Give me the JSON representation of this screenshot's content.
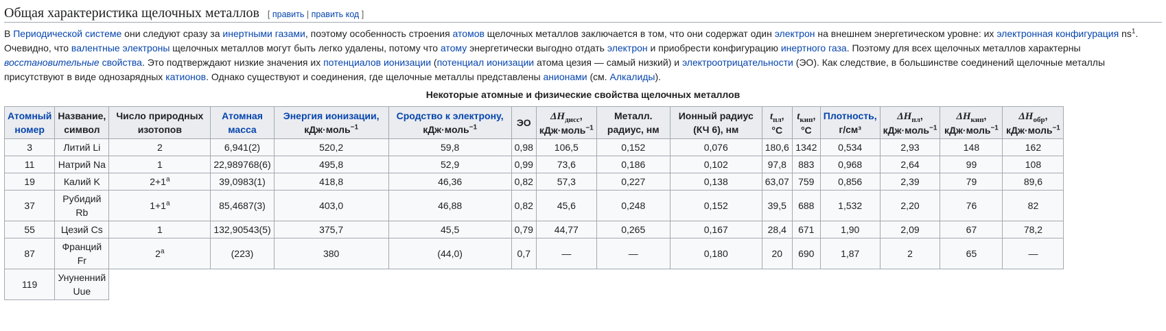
{
  "heading": {
    "title": "Общая характеристика щелочных металлов",
    "edit_open": "[",
    "edit": "править",
    "edit_sep": "|",
    "edit_code": "править код",
    "edit_close": "]"
  },
  "para": {
    "t1": "В ",
    "l1": "Периодической системе",
    "t2": " они следуют сразу за ",
    "l2": "инертными газами",
    "t3": ", поэтому особенность строения ",
    "l3": "атомов",
    "t4": " щелочных металлов заключается в том, что они содержат один ",
    "l4": "электрон",
    "t5": " на внешнем энергетическом уровне: их ",
    "l5": "электронная конфигурация",
    "t6": " ns",
    "sup1": "1",
    "t7": ". Очевидно, что ",
    "l6": "валентные электроны",
    "t8": " щелочных металлов могут быть легко удалены, потому что ",
    "l7": "атому",
    "t9": " энергетически выгодно отдать ",
    "l8": "электрон",
    "t10": " и приобрести конфигурацию ",
    "l9": "инертного газа",
    "t11": ". Поэтому для всех щелочных металлов характерны ",
    "l10a": "восстановительные",
    "t12": " ",
    "l10b": "свойства",
    "t13": ". Это подтверждают низкие значения их ",
    "l11": "потенциалов ионизации",
    "t14": " (",
    "l12": "потенциал ионизации",
    "t15": " атома цезия — самый низкий) и ",
    "l13": "электроотрицательности",
    "t16": " (ЭО). Как следствие, в большинстве соединений щелочные металлы присутствуют в виде однозарядных ",
    "l14": "катионов",
    "t17": ". Однако существуют и соединения, где щелочные металлы представлены ",
    "l15": "анионами",
    "t18": " (см. ",
    "l16": "Алкалиды",
    "t19": ")."
  },
  "table": {
    "caption": "Некоторые атомные и физические свойства щелочных металлов",
    "headers": {
      "atomic_number_1": "Атомный",
      "atomic_number_2": "номер",
      "name_1": "Название,",
      "name_2": "символ",
      "isotopes_1": "Число природных",
      "isotopes_2": "изотопов",
      "mass_1": "Атомная",
      "mass_2": "масса",
      "ion_energy_1": "Энергия ионизации,",
      "ion_energy_2": "кДж·моль",
      "affinity_1": "Сродство к электрону,",
      "affinity_2": "кДж·моль",
      "eo": "ЭО",
      "dh": "ΔH",
      "diss": "дисс",
      "dh_unit": "кДж·моль",
      "metal_r_1": "Металл.",
      "metal_r_2": "радиус, нм",
      "ion_r_1": "Ионный радиус",
      "ion_r_2": "(КЧ 6), нм",
      "t": "t",
      "pl": "пл",
      "kip": "кип",
      "deg": "°C",
      "density_1": "Плотность,",
      "density_2": "г/см³",
      "obr": "обр",
      "comma": ",",
      "unit_exp": "−1"
    },
    "rows": [
      {
        "num": "3",
        "name": "Литий Li",
        "iso": "2",
        "iso_sup": "",
        "mass": "6,941(2)",
        "ie": "520,2",
        "ea": "59,8",
        "eo": "0,98",
        "dhd": "106,5",
        "mr": "0,152",
        "ir": "0,076",
        "tpl": "180,6",
        "tkip": "1342",
        "rho": "0,534",
        "hpl": "2,93",
        "hkip": "148",
        "hobr": "162"
      },
      {
        "num": "11",
        "name": "Натрий Na",
        "iso": "1",
        "iso_sup": "",
        "mass": "22,989768(6)",
        "ie": "495,8",
        "ea": "52,9",
        "eo": "0,99",
        "dhd": "73,6",
        "mr": "0,186",
        "ir": "0,102",
        "tpl": "97,8",
        "tkip": "883",
        "rho": "0,968",
        "hpl": "2,64",
        "hkip": "99",
        "hobr": "108"
      },
      {
        "num": "19",
        "name": "Калий K",
        "iso": "2+1",
        "iso_sup": "a",
        "mass": "39,0983(1)",
        "ie": "418,8",
        "ea": "46,36",
        "eo": "0,82",
        "dhd": "57,3",
        "mr": "0,227",
        "ir": "0,138",
        "tpl": "63,07",
        "tkip": "759",
        "rho": "0,856",
        "hpl": "2,39",
        "hkip": "79",
        "hobr": "89,6"
      },
      {
        "num": "37",
        "name1": "Рубидий",
        "name2": "Rb",
        "iso": "1+1",
        "iso_sup": "a",
        "mass": "85,4687(3)",
        "ie": "403,0",
        "ea": "46,88",
        "eo": "0,82",
        "dhd": "45,6",
        "mr": "0,248",
        "ir": "0,152",
        "tpl": "39,5",
        "tkip": "688",
        "rho": "1,532",
        "hpl": "2,20",
        "hkip": "76",
        "hobr": "82"
      },
      {
        "num": "55",
        "name": "Цезий Cs",
        "iso": "1",
        "iso_sup": "",
        "mass": "132,90543(5)",
        "ie": "375,7",
        "ea": "45,5",
        "eo": "0,79",
        "dhd": "44,77",
        "mr": "0,265",
        "ir": "0,167",
        "tpl": "28,4",
        "tkip": "671",
        "rho": "1,90",
        "hpl": "2,09",
        "hkip": "67",
        "hobr": "78,2"
      },
      {
        "num": "87",
        "name1": "Франций",
        "name2": "Fr",
        "iso": "2",
        "iso_sup": "a",
        "mass": "(223)",
        "ie": "380",
        "ea": "(44,0)",
        "eo": "0,7",
        "dhd": "—",
        "mr": "—",
        "ir": "0,180",
        "tpl": "20",
        "tkip": "690",
        "rho": "1,87",
        "hpl": "2",
        "hkip": "65",
        "hobr": "—"
      },
      {
        "num": "119",
        "name1": "Унуненний",
        "name2": "Uue"
      }
    ]
  }
}
